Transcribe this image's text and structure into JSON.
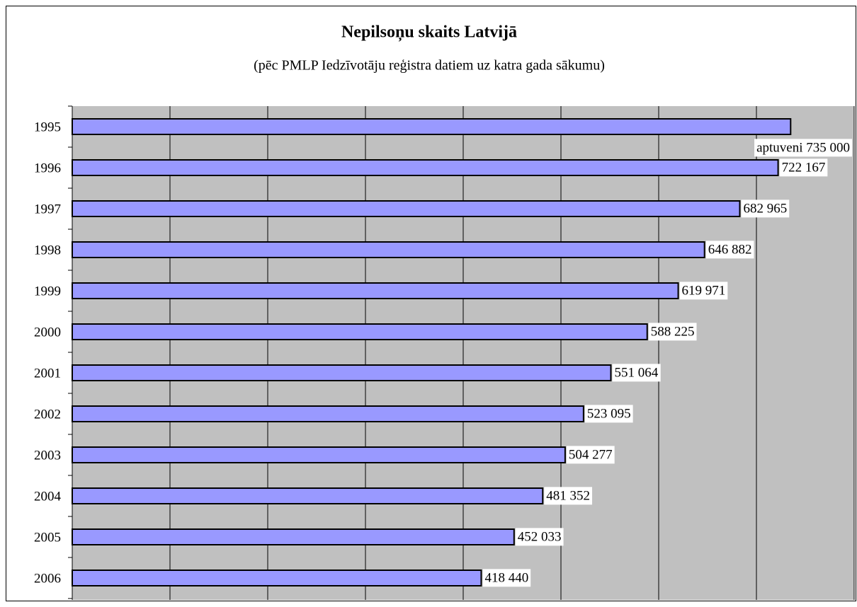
{
  "chart_data": {
    "type": "barh",
    "title": "Nepilsoņu skaits Latvijā",
    "subtitle": "(pēc PMLP Iedzīvotāju reģistra datiem uz katra gada sākumu)",
    "categories": [
      "1995",
      "1996",
      "1997",
      "1998",
      "1999",
      "2000",
      "2001",
      "2002",
      "2003",
      "2004",
      "2005",
      "2006"
    ],
    "values": [
      735000,
      722167,
      682965,
      646882,
      619971,
      588225,
      551064,
      523095,
      504277,
      481352,
      452033,
      418440
    ],
    "value_labels": [
      "aptuveni 735 000",
      "722 167",
      "682 965",
      "646 882",
      "619 971",
      "588 225",
      "551 064",
      "523 095",
      "504 277",
      "481 352",
      "452 033",
      "418 440"
    ],
    "color": "#9999ff",
    "xlim": [
      0,
      800000
    ],
    "xticks": [
      0,
      100000,
      200000,
      300000,
      400000,
      500000,
      600000,
      700000,
      800000
    ],
    "grid": true
  }
}
